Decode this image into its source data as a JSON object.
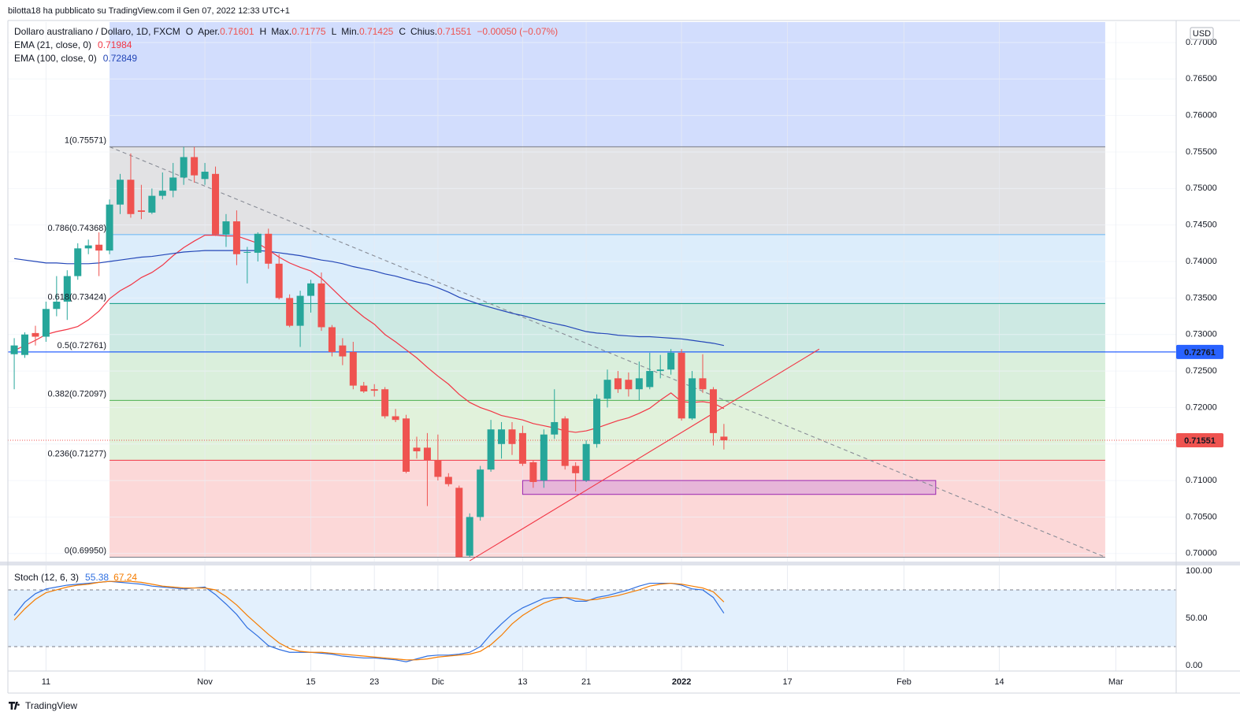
{
  "header": {
    "published": "bilotta18 ha pubblicato su TradingView.com il Gen 07, 2022 12:33 UTC+1",
    "brand": "TradingView",
    "currency": "USD"
  },
  "chart_data": {
    "type": "candlestick",
    "title": "Dollaro australiano / Dollaro, 1D, FXCM",
    "ohlc_labels": [
      [
        "O",
        "Aper."
      ],
      [
        "H",
        "Max."
      ],
      [
        "L",
        "Min."
      ],
      [
        "C",
        "Chius."
      ]
    ],
    "change_label": "−0.00050 (−0.07%)",
    "xlim": [
      -0.6,
      109.7
    ],
    "xticks": [
      {
        "value": 3,
        "label": "11"
      },
      {
        "value": 18,
        "label": "Nov"
      },
      {
        "value": 28,
        "label": "15"
      },
      {
        "value": 34,
        "label": "23"
      },
      {
        "value": 40,
        "label": "Dic"
      },
      {
        "value": 48,
        "label": "13"
      },
      {
        "value": 54,
        "label": "21"
      },
      {
        "value": 63,
        "label": "2022",
        "bold": true
      },
      {
        "value": 73,
        "label": "17"
      },
      {
        "value": 84,
        "label": "Feb"
      },
      {
        "value": 93,
        "label": "14"
      },
      {
        "value": 104,
        "label": "Mar"
      }
    ],
    "ylim": [
      0.6989,
      0.7728
    ],
    "yticks": [
      {
        "value": 0.7,
        "label": "0.70000"
      },
      {
        "value": 0.705,
        "label": "0.70500"
      },
      {
        "value": 0.71,
        "label": "0.71000"
      },
      {
        "value": 0.715,
        "label": "0.71500"
      },
      {
        "value": 0.72,
        "label": "0.72000"
      },
      {
        "value": 0.725,
        "label": "0.72500"
      },
      {
        "value": 0.73,
        "label": "0.73000"
      },
      {
        "value": 0.735,
        "label": "0.73500"
      },
      {
        "value": 0.74,
        "label": "0.74000"
      },
      {
        "value": 0.745,
        "label": "0.74500"
      },
      {
        "value": 0.75,
        "label": "0.75000"
      },
      {
        "value": 0.755,
        "label": "0.75500"
      },
      {
        "value": 0.76,
        "label": "0.76000"
      },
      {
        "value": 0.765,
        "label": "0.76500"
      },
      {
        "value": 0.77,
        "label": "0.77000"
      }
    ],
    "grid": true,
    "candles": {
      "up_color": "#26a69a",
      "down_color": "#ef5350",
      "open": [
        0.7273,
        0.7272,
        0.7302,
        0.7297,
        0.7335,
        0.7345,
        0.738,
        0.7418,
        0.7423,
        0.7415,
        0.7478,
        0.7512,
        0.747,
        0.7467,
        0.749,
        0.7497,
        0.7515,
        0.7543,
        0.7513,
        0.752,
        0.7437,
        0.7455,
        0.7412,
        0.7412,
        0.7438,
        0.7397,
        0.735,
        0.7312,
        0.7353,
        0.737,
        0.731,
        0.7285,
        0.7276,
        0.723,
        0.7225,
        0.7225,
        0.7188,
        0.7185,
        0.7145,
        0.7145,
        0.7128,
        0.7105,
        0.709,
        0.6997,
        0.705,
        0.7115,
        0.715,
        0.717,
        0.7165,
        0.7125,
        0.71,
        0.7163,
        0.7185,
        0.712,
        0.71,
        0.715,
        0.7212,
        0.724,
        0.7238,
        0.7225,
        0.7228,
        0.725,
        0.7252,
        0.7275,
        0.7185,
        0.724,
        0.7225,
        0.71601
      ],
      "high": [
        0.7295,
        0.7303,
        0.7312,
        0.7345,
        0.738,
        0.7388,
        0.7425,
        0.743,
        0.744,
        0.7485,
        0.752,
        0.7548,
        0.7505,
        0.75,
        0.7522,
        0.7535,
        0.7557,
        0.7557,
        0.7535,
        0.753,
        0.7465,
        0.747,
        0.742,
        0.744,
        0.7445,
        0.741,
        0.7355,
        0.736,
        0.7375,
        0.7385,
        0.7313,
        0.7295,
        0.729,
        0.7235,
        0.7232,
        0.7228,
        0.7198,
        0.719,
        0.716,
        0.7165,
        0.7163,
        0.711,
        0.7093,
        0.7055,
        0.712,
        0.7183,
        0.718,
        0.718,
        0.7175,
        0.7128,
        0.717,
        0.7225,
        0.7188,
        0.7125,
        0.7155,
        0.7218,
        0.7252,
        0.725,
        0.7248,
        0.7263,
        0.7275,
        0.7272,
        0.728,
        0.728,
        0.725,
        0.7273,
        0.7228,
        0.71775
      ],
      "low": [
        0.7225,
        0.7268,
        0.7285,
        0.729,
        0.7325,
        0.732,
        0.7375,
        0.741,
        0.738,
        0.741,
        0.7465,
        0.746,
        0.7458,
        0.7465,
        0.7485,
        0.7488,
        0.7505,
        0.7508,
        0.7505,
        0.7435,
        0.742,
        0.7395,
        0.737,
        0.74,
        0.739,
        0.7348,
        0.731,
        0.7283,
        0.733,
        0.7305,
        0.727,
        0.7258,
        0.7225,
        0.722,
        0.7215,
        0.7185,
        0.718,
        0.711,
        0.713,
        0.7065,
        0.71,
        0.7092,
        0.6995,
        0.6995,
        0.7045,
        0.7112,
        0.713,
        0.7135,
        0.712,
        0.709,
        0.709,
        0.7157,
        0.7115,
        0.7085,
        0.7098,
        0.7145,
        0.72,
        0.722,
        0.7215,
        0.721,
        0.7225,
        0.724,
        0.7245,
        0.7182,
        0.7183,
        0.722,
        0.7148,
        0.71425
      ],
      "close": [
        0.7285,
        0.73,
        0.7297,
        0.7335,
        0.7345,
        0.738,
        0.7418,
        0.7422,
        0.7415,
        0.7478,
        0.7512,
        0.7465,
        0.7468,
        0.749,
        0.7497,
        0.7515,
        0.7543,
        0.7518,
        0.7523,
        0.7437,
        0.7455,
        0.741,
        0.7413,
        0.7438,
        0.7397,
        0.735,
        0.7312,
        0.7353,
        0.737,
        0.731,
        0.7276,
        0.727,
        0.723,
        0.7222,
        0.7223,
        0.7188,
        0.7183,
        0.7112,
        0.714,
        0.7128,
        0.7105,
        0.7095,
        0.6995,
        0.705,
        0.7115,
        0.717,
        0.717,
        0.715,
        0.7123,
        0.7098,
        0.7163,
        0.718,
        0.712,
        0.711,
        0.715,
        0.7212,
        0.7238,
        0.7225,
        0.7225,
        0.724,
        0.725,
        0.7252,
        0.7275,
        0.7185,
        0.724,
        0.7225,
        0.7165,
        0.71551
      ]
    },
    "series": [
      {
        "name": "EMA (21, close, 0)",
        "color": "#f23645",
        "values": [
          0.7278,
          0.7285,
          0.7292,
          0.73,
          0.7304,
          0.7307,
          0.7311,
          0.732,
          0.7332,
          0.7349,
          0.736,
          0.7368,
          0.7378,
          0.7385,
          0.7395,
          0.7408,
          0.7419,
          0.7428,
          0.7436,
          0.7436,
          0.7435,
          0.7435,
          0.743,
          0.7425,
          0.7416,
          0.7406,
          0.7398,
          0.7392,
          0.7387,
          0.7377,
          0.7363,
          0.7349,
          0.7336,
          0.7324,
          0.7314,
          0.73,
          0.729,
          0.7279,
          0.7268,
          0.7255,
          0.7243,
          0.7232,
          0.7218,
          0.7207,
          0.72,
          0.7195,
          0.7189,
          0.7186,
          0.7183,
          0.7178,
          0.7175,
          0.7172,
          0.7168,
          0.7166,
          0.7168,
          0.7172,
          0.7177,
          0.7182,
          0.7186,
          0.7192,
          0.7199,
          0.721,
          0.722,
          0.7208,
          0.7207,
          0.7208,
          0.7206,
          0.71984
        ]
      },
      {
        "name": "EMA (100, close, 0)",
        "color": "#2447b8",
        "values": [
          0.7404,
          0.7402,
          0.74,
          0.7398,
          0.7398,
          0.7397,
          0.7397,
          0.7397,
          0.7398,
          0.74,
          0.7402,
          0.7404,
          0.7406,
          0.7407,
          0.7409,
          0.7411,
          0.7413,
          0.7414,
          0.7415,
          0.7415,
          0.7415,
          0.7415,
          0.7415,
          0.7415,
          0.7414,
          0.7412,
          0.741,
          0.7408,
          0.7405,
          0.7402,
          0.74,
          0.7397,
          0.7393,
          0.739,
          0.7387,
          0.7383,
          0.738,
          0.7376,
          0.7372,
          0.7369,
          0.7364,
          0.7358,
          0.7351,
          0.7346,
          0.7341,
          0.7337,
          0.7333,
          0.7329,
          0.7326,
          0.7322,
          0.7318,
          0.7315,
          0.7312,
          0.7308,
          0.7304,
          0.7302,
          0.7301,
          0.7299,
          0.7298,
          0.7297,
          0.7297,
          0.7296,
          0.7295,
          0.7294,
          0.7292,
          0.729,
          0.7288,
          0.72849
        ]
      }
    ],
    "fibonacci": {
      "start": 9,
      "end": 103,
      "top_fill": "#d2ddfd",
      "levels": [
        {
          "label": "1(0.75571)",
          "value": 0.75571,
          "color": "#787b86",
          "fill": "#e2e2e4"
        },
        {
          "label": "0.786(0.74368)",
          "value": 0.74368,
          "color": "#64b5f6",
          "fill": "#dcedfb"
        },
        {
          "label": "0.618(0.73424)",
          "value": 0.73424,
          "color": "#089981",
          "fill": "#cde9e3"
        },
        {
          "label": "0.5(0.72761)",
          "value": 0.72761,
          "color": "#4caf50",
          "fill": "#daefdc"
        },
        {
          "label": "0.382(0.72097)",
          "value": 0.72097,
          "color": "#4caf50",
          "fill": "#e1f2db"
        },
        {
          "label": "0.236(0.71277)",
          "value": 0.71277,
          "color": "#f23645",
          "fill": "#fcd8d8"
        },
        {
          "label": "0(0.69950)",
          "value": 0.6995,
          "color": "#787b86"
        }
      ]
    },
    "horizontal_line": {
      "value": 0.72761,
      "color": "#2962ff"
    },
    "trend_lines": [
      {
        "x": [
          9,
          103
        ],
        "y": [
          0.75571,
          0.6995
        ],
        "color": "#888c96",
        "dashed": true
      },
      {
        "x": [
          43,
          76
        ],
        "y": [
          0.699,
          0.728
        ],
        "color": "#f23645",
        "dashed": false
      }
    ],
    "rectangle": {
      "x": [
        48,
        87
      ],
      "y": [
        0.7081,
        0.71
      ],
      "color": "#9c27b0",
      "fill": "#e3b0d8"
    },
    "indicator": {
      "name": "Stoch (12, 6, 3)",
      "ylim": [
        -5.8,
        105.8
      ],
      "yticks": [
        {
          "value": 0,
          "label": "0.00"
        },
        {
          "value": 50,
          "label": "50.00"
        },
        {
          "value": 100,
          "label": "100.00"
        }
      ],
      "levels": [
        80,
        20
      ],
      "band_fill": "#e3f0fd",
      "series": [
        {
          "color": "#2f6fe0",
          "values": [
            53,
            67,
            76,
            81,
            83,
            85,
            86,
            87,
            88,
            89,
            88,
            87,
            86,
            84,
            83,
            82,
            81,
            82,
            83,
            75,
            65,
            54,
            40,
            31,
            21,
            17,
            14,
            14,
            14,
            13,
            12,
            10,
            9,
            8,
            8,
            7,
            6,
            4,
            7,
            10,
            11,
            11,
            12,
            14,
            20,
            33,
            44,
            54,
            61,
            66,
            71,
            72,
            72,
            68,
            68,
            72,
            74,
            77,
            80,
            84,
            87,
            87,
            87,
            85,
            81,
            80,
            72,
            55.38
          ]
        },
        {
          "color": "#f57c00",
          "values": [
            48,
            60,
            70,
            77,
            80,
            83,
            85,
            86,
            88,
            89,
            89,
            89,
            88,
            86,
            84,
            83,
            82,
            82,
            82,
            80,
            73,
            64,
            53,
            43,
            33,
            24,
            18,
            15,
            14,
            14,
            13,
            12,
            11,
            10,
            9,
            8,
            7,
            6,
            6,
            7,
            9,
            10,
            11,
            12,
            15,
            22,
            32,
            44,
            53,
            60,
            66,
            70,
            72,
            71,
            69,
            70,
            72,
            74,
            77,
            80,
            84,
            86,
            87,
            86,
            84,
            82,
            78,
            67.24
          ]
        }
      ]
    }
  }
}
